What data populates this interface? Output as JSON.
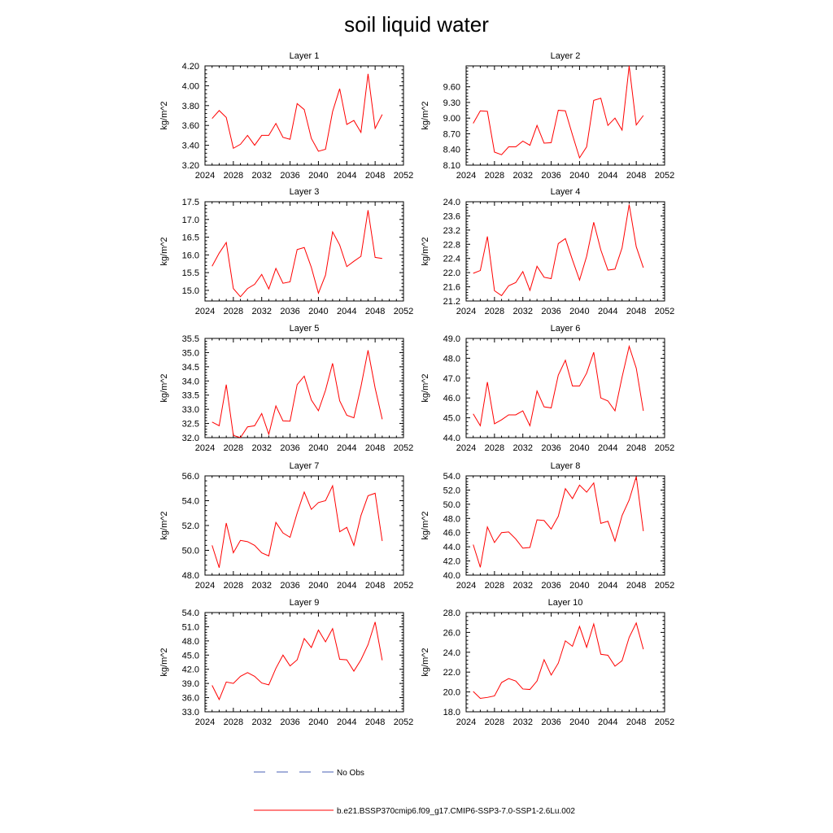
{
  "title": "soil liquid water",
  "colors": {
    "model": "#ff0000",
    "obs": "#4a5fb4",
    "axis": "#000000"
  },
  "legend": {
    "obs_label": "No Obs",
    "model_label": "b.e21.BSSP370cmip6.f09_g17.CMIP6-SSP3-7.0-SSP1-2.6Lu.002"
  },
  "chart_data": [
    {
      "type": "line",
      "title": "Layer 1",
      "ylabel": "kg/m^2",
      "xlim": [
        2024,
        2052
      ],
      "ylim": [
        3.2,
        4.2
      ],
      "xticks": [
        "2024",
        "2028",
        "2032",
        "2036",
        "2040",
        "2044",
        "2048",
        "2052"
      ],
      "yticks": [
        "3.20",
        "3.40",
        "3.60",
        "3.80",
        "4.00",
        "4.20"
      ],
      "x": [
        2025,
        2026,
        2027,
        2028,
        2029,
        2030,
        2031,
        2032,
        2033,
        2034,
        2035,
        2036,
        2037,
        2038,
        2039,
        2040,
        2041,
        2042,
        2043,
        2044,
        2045,
        2046,
        2047,
        2048,
        2049
      ],
      "values": [
        3.67,
        3.75,
        3.68,
        3.37,
        3.41,
        3.5,
        3.4,
        3.5,
        3.5,
        3.62,
        3.48,
        3.46,
        3.82,
        3.76,
        3.47,
        3.34,
        3.36,
        3.74,
        3.97,
        3.61,
        3.65,
        3.53,
        4.12,
        3.57,
        3.71
      ]
    },
    {
      "type": "line",
      "title": "Layer 2",
      "ylabel": "kg/m^2",
      "xlim": [
        2024,
        2052
      ],
      "ylim": [
        8.1,
        10.0
      ],
      "xticks": [
        "2024",
        "2028",
        "2032",
        "2036",
        "2040",
        "2044",
        "2048",
        "2052"
      ],
      "yticks": [
        "8.10",
        "8.40",
        "8.70",
        "9.00",
        "9.30",
        "9.60"
      ],
      "x": [
        2025,
        2026,
        2027,
        2028,
        2029,
        2030,
        2031,
        2032,
        2033,
        2034,
        2035,
        2036,
        2037,
        2038,
        2039,
        2040,
        2041,
        2042,
        2043,
        2044,
        2045,
        2046,
        2047,
        2048,
        2049
      ],
      "values": [
        8.9,
        9.14,
        9.13,
        8.35,
        8.3,
        8.45,
        8.45,
        8.56,
        8.48,
        8.86,
        8.52,
        8.53,
        9.15,
        9.14,
        8.68,
        8.24,
        8.45,
        9.34,
        9.38,
        8.86,
        9.0,
        8.77,
        10.0,
        8.87,
        9.05
      ]
    },
    {
      "type": "line",
      "title": "Layer 3",
      "ylabel": "kg/m^2",
      "xlim": [
        2024,
        2052
      ],
      "ylim": [
        14.7,
        17.5
      ],
      "xticks": [
        "2024",
        "2028",
        "2032",
        "2036",
        "2040",
        "2044",
        "2048",
        "2052"
      ],
      "yticks": [
        "15.0",
        "15.5",
        "16.0",
        "16.5",
        "17.0",
        "17.5"
      ],
      "x": [
        2025,
        2026,
        2027,
        2028,
        2029,
        2030,
        2031,
        2032,
        2033,
        2034,
        2035,
        2036,
        2037,
        2038,
        2039,
        2040,
        2041,
        2042,
        2043,
        2044,
        2045,
        2046,
        2047,
        2048,
        2049
      ],
      "values": [
        15.68,
        16.05,
        16.35,
        15.05,
        14.82,
        15.05,
        15.17,
        15.45,
        15.04,
        15.62,
        15.2,
        15.24,
        16.15,
        16.21,
        15.65,
        14.92,
        15.43,
        16.65,
        16.28,
        15.67,
        15.82,
        15.96,
        17.26,
        15.93,
        15.9
      ]
    },
    {
      "type": "line",
      "title": "Layer 4",
      "ylabel": "kg/m^2",
      "xlim": [
        2024,
        2052
      ],
      "ylim": [
        21.2,
        24.0
      ],
      "xticks": [
        "2024",
        "2028",
        "2032",
        "2036",
        "2040",
        "2044",
        "2048",
        "2052"
      ],
      "yticks": [
        "21.2",
        "21.6",
        "22.0",
        "22.4",
        "22.8",
        "23.2",
        "23.6",
        "24.0"
      ],
      "x": [
        2025,
        2026,
        2027,
        2028,
        2029,
        2030,
        2031,
        2032,
        2033,
        2034,
        2035,
        2036,
        2037,
        2038,
        2039,
        2040,
        2041,
        2042,
        2043,
        2044,
        2045,
        2046,
        2047,
        2048,
        2049
      ],
      "values": [
        21.98,
        22.06,
        23.02,
        21.49,
        21.35,
        21.63,
        21.72,
        22.03,
        21.5,
        22.18,
        21.87,
        21.83,
        22.82,
        22.96,
        22.36,
        21.79,
        22.46,
        23.42,
        22.64,
        22.07,
        22.1,
        22.7,
        23.92,
        22.73,
        22.14
      ]
    },
    {
      "type": "line",
      "title": "Layer 5",
      "ylabel": "kg/m^2",
      "xlim": [
        2024,
        2052
      ],
      "ylim": [
        32.0,
        35.5
      ],
      "xticks": [
        "2024",
        "2028",
        "2032",
        "2036",
        "2040",
        "2044",
        "2048",
        "2052"
      ],
      "yticks": [
        "32.0",
        "32.5",
        "33.0",
        "33.5",
        "34.0",
        "34.5",
        "35.0",
        "35.5"
      ],
      "x": [
        2025,
        2026,
        2027,
        2028,
        2029,
        2030,
        2031,
        2032,
        2033,
        2034,
        2035,
        2036,
        2037,
        2038,
        2039,
        2040,
        2041,
        2042,
        2043,
        2044,
        2045,
        2046,
        2047,
        2048,
        2049
      ],
      "values": [
        32.55,
        32.42,
        33.87,
        32.08,
        32.0,
        32.38,
        32.42,
        32.85,
        32.12,
        33.12,
        32.59,
        32.58,
        33.87,
        34.17,
        33.33,
        32.95,
        33.67,
        34.62,
        33.3,
        32.79,
        32.7,
        33.8,
        35.08,
        33.75,
        32.65
      ]
    },
    {
      "type": "line",
      "title": "Layer 6",
      "ylabel": "kg/m^2",
      "xlim": [
        2024,
        2052
      ],
      "ylim": [
        44.0,
        49.0
      ],
      "xticks": [
        "2024",
        "2028",
        "2032",
        "2036",
        "2040",
        "2044",
        "2048",
        "2052"
      ],
      "yticks": [
        "44.0",
        "45.0",
        "46.0",
        "47.0",
        "48.0",
        "49.0"
      ],
      "x": [
        2025,
        2026,
        2027,
        2028,
        2029,
        2030,
        2031,
        2032,
        2033,
        2034,
        2035,
        2036,
        2037,
        2038,
        2039,
        2040,
        2041,
        2042,
        2043,
        2044,
        2045,
        2046,
        2047,
        2048,
        2049
      ],
      "values": [
        45.2,
        44.6,
        46.8,
        44.7,
        44.9,
        45.15,
        45.15,
        45.35,
        44.6,
        46.35,
        45.55,
        45.5,
        47.15,
        47.9,
        46.6,
        46.6,
        47.25,
        48.3,
        46.0,
        45.85,
        45.35,
        47.05,
        48.6,
        47.5,
        45.35
      ]
    },
    {
      "type": "line",
      "title": "Layer 7",
      "ylabel": "kg/m^2",
      "xlim": [
        2024,
        2052
      ],
      "ylim": [
        48.0,
        56.0
      ],
      "xticks": [
        "2024",
        "2028",
        "2032",
        "2036",
        "2040",
        "2044",
        "2048",
        "2052"
      ],
      "yticks": [
        "48.0",
        "50.0",
        "52.0",
        "54.0",
        "56.0"
      ],
      "x": [
        2025,
        2026,
        2027,
        2028,
        2029,
        2030,
        2031,
        2032,
        2033,
        2034,
        2035,
        2036,
        2037,
        2038,
        2039,
        2040,
        2041,
        2042,
        2043,
        2044,
        2045,
        2046,
        2047,
        2048,
        2049
      ],
      "values": [
        50.4,
        48.6,
        52.2,
        49.8,
        50.8,
        50.7,
        50.4,
        49.8,
        49.55,
        52.25,
        51.4,
        51.05,
        53.0,
        54.7,
        53.3,
        53.85,
        54.0,
        55.2,
        51.5,
        51.85,
        50.4,
        52.8,
        54.4,
        54.6,
        50.75
      ]
    },
    {
      "type": "line",
      "title": "Layer 8",
      "ylabel": "kg/m^2",
      "xlim": [
        2024,
        2052
      ],
      "ylim": [
        40.0,
        54.0
      ],
      "xticks": [
        "2024",
        "2028",
        "2032",
        "2036",
        "2040",
        "2044",
        "2048",
        "2052"
      ],
      "yticks": [
        "40.0",
        "42.0",
        "44.0",
        "46.0",
        "48.0",
        "50.0",
        "52.0",
        "54.0"
      ],
      "x": [
        2025,
        2026,
        2027,
        2028,
        2029,
        2030,
        2031,
        2032,
        2033,
        2034,
        2035,
        2036,
        2037,
        2038,
        2039,
        2040,
        2041,
        2042,
        2043,
        2044,
        2045,
        2046,
        2047,
        2048,
        2049
      ],
      "values": [
        44.3,
        41.1,
        46.8,
        44.6,
        46.0,
        46.1,
        45.1,
        43.8,
        43.9,
        47.8,
        47.7,
        46.5,
        48.3,
        52.2,
        50.8,
        52.7,
        51.7,
        53.0,
        47.3,
        47.6,
        44.8,
        48.4,
        50.6,
        53.9,
        46.2
      ]
    },
    {
      "type": "line",
      "title": "Layer 9",
      "ylabel": "kg/m^2",
      "xlim": [
        2024,
        2052
      ],
      "ylim": [
        33.0,
        54.0
      ],
      "xticks": [
        "2024",
        "2028",
        "2032",
        "2036",
        "2040",
        "2044",
        "2048",
        "2052"
      ],
      "yticks": [
        "33.0",
        "36.0",
        "39.0",
        "42.0",
        "45.0",
        "48.0",
        "51.0",
        "54.0"
      ],
      "x": [
        2025,
        2026,
        2027,
        2028,
        2029,
        2030,
        2031,
        2032,
        2033,
        2034,
        2035,
        2036,
        2037,
        2038,
        2039,
        2040,
        2041,
        2042,
        2043,
        2044,
        2045,
        2046,
        2047,
        2048,
        2049
      ],
      "values": [
        38.6,
        35.6,
        39.3,
        39.0,
        40.5,
        41.3,
        40.5,
        39.1,
        38.7,
        42.2,
        45.0,
        42.7,
        44.0,
        48.5,
        46.6,
        50.3,
        47.8,
        50.6,
        44.1,
        44.0,
        41.6,
        44.0,
        47.2,
        52.0,
        43.9
      ]
    },
    {
      "type": "line",
      "title": "Layer 10",
      "ylabel": "kg/m^2",
      "xlim": [
        2024,
        2052
      ],
      "ylim": [
        18.0,
        28.0
      ],
      "xticks": [
        "2024",
        "2028",
        "2032",
        "2036",
        "2040",
        "2044",
        "2048",
        "2052"
      ],
      "yticks": [
        "18.0",
        "20.0",
        "22.0",
        "24.0",
        "26.0",
        "28.0"
      ],
      "x": [
        2025,
        2026,
        2027,
        2028,
        2029,
        2030,
        2031,
        2032,
        2033,
        2034,
        2035,
        2036,
        2037,
        2038,
        2039,
        2040,
        2041,
        2042,
        2043,
        2044,
        2045,
        2046,
        2047,
        2048,
        2049
      ],
      "values": [
        20.05,
        19.35,
        19.45,
        19.6,
        20.95,
        21.35,
        21.1,
        20.3,
        20.25,
        21.1,
        23.25,
        21.7,
        22.9,
        25.15,
        24.6,
        26.6,
        24.5,
        26.85,
        23.8,
        23.7,
        22.6,
        23.15,
        25.5,
        26.95,
        24.3
      ]
    }
  ]
}
